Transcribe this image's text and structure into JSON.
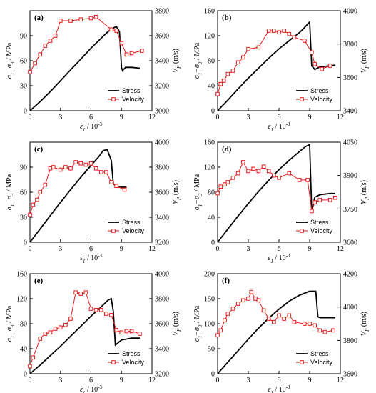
{
  "chart_data": [
    {
      "type": "line",
      "panel": "(a)",
      "xlabel": "ε1 / 10-3",
      "ylabel_left": "σ1−σ3 / MPa",
      "ylabel_right": "VP (m/s)",
      "xlim": [
        0,
        12
      ],
      "xticks": [
        0,
        3,
        6,
        9,
        12
      ],
      "ylim_left": [
        0,
        120
      ],
      "yticks_left": [
        0,
        30,
        60,
        90
      ],
      "ylim_right": [
        3000,
        3800
      ],
      "yticks_right": [
        3000,
        3200,
        3400,
        3600,
        3800
      ],
      "legend": {
        "position": "bottom-right",
        "entries": [
          "Stress",
          "Velocity"
        ]
      },
      "series": [
        {
          "name": "Stress",
          "axis": "left",
          "x": [
            0,
            1,
            2,
            3,
            4,
            5,
            6,
            7,
            7.5,
            8,
            8.5,
            8.8,
            9.0,
            9.1,
            9.4,
            10,
            10.8
          ],
          "y": [
            0,
            11,
            23,
            36,
            49,
            62,
            75,
            87,
            93,
            98,
            101,
            95,
            52,
            48,
            52,
            52,
            51
          ]
        },
        {
          "name": "Velocity",
          "axis": "right",
          "x": [
            0,
            0.5,
            1,
            1.5,
            2,
            2.5,
            3,
            4,
            5,
            6,
            6.5,
            8,
            8.5,
            9,
            9.5,
            10,
            11
          ],
          "y": [
            3310,
            3380,
            3450,
            3520,
            3560,
            3600,
            3720,
            3720,
            3730,
            3740,
            3750,
            3650,
            3640,
            3540,
            3450,
            3460,
            3480
          ]
        }
      ]
    },
    {
      "type": "line",
      "panel": "(b)",
      "xlabel": "ε1 / 10-3",
      "ylabel_left": "σ1−σ3 / MPa",
      "ylabel_right": "VP (m/s)",
      "xlim": [
        0,
        12
      ],
      "xticks": [
        0,
        3,
        6,
        9,
        12
      ],
      "ylim_left": [
        0,
        160
      ],
      "yticks_left": [
        0,
        40,
        80,
        120,
        160
      ],
      "ylim_right": [
        3400,
        4000
      ],
      "yticks_right": [
        3400,
        3600,
        3800,
        4000
      ],
      "legend": {
        "position": "bottom-right",
        "entries": [
          "Stress",
          "Velocity"
        ]
      },
      "series": [
        {
          "name": "Stress",
          "axis": "left",
          "x": [
            0,
            1,
            2,
            3,
            4,
            5,
            6,
            7,
            8,
            8.5,
            9,
            9.2,
            9.5,
            10,
            11,
            11.5
          ],
          "y": [
            0,
            17,
            35,
            52,
            68,
            84,
            99,
            112,
            125,
            133,
            142,
            72,
            66,
            70,
            72,
            73
          ]
        },
        {
          "name": "Velocity",
          "axis": "right",
          "x": [
            0,
            0.3,
            0.6,
            1,
            1.5,
            2,
            2.5,
            3,
            4,
            5,
            5.5,
            6,
            6.5,
            7,
            7.5,
            8.5,
            9.2,
            9.5,
            10.2,
            11
          ],
          "y": [
            3500,
            3560,
            3580,
            3620,
            3640,
            3690,
            3720,
            3770,
            3780,
            3880,
            3880,
            3870,
            3880,
            3860,
            3840,
            3820,
            3750,
            3680,
            3650,
            3670
          ]
        }
      ]
    },
    {
      "type": "line",
      "panel": "(c)",
      "xlabel": "ε1 / 10-3",
      "ylabel_left": "σ1−σ3 / MPa",
      "ylabel_right": "VP (m/s)",
      "xlim": [
        0,
        12
      ],
      "xticks": [
        0,
        3,
        6,
        9,
        12
      ],
      "ylim_left": [
        0,
        120
      ],
      "yticks_left": [
        0,
        30,
        60,
        90
      ],
      "ylim_right": [
        3200,
        4000
      ],
      "yticks_right": [
        3200,
        3400,
        3600,
        3800,
        4000
      ],
      "legend": {
        "position": "bottom-right",
        "entries": [
          "Stress",
          "Velocity"
        ]
      },
      "series": [
        {
          "name": "Stress",
          "axis": "left",
          "x": [
            0,
            1,
            2,
            3,
            4,
            5,
            6,
            6.8,
            7.2,
            7.6,
            8.0,
            8.2,
            8.6,
            9.0,
            9.5
          ],
          "y": [
            0,
            16,
            32,
            48,
            63,
            78,
            92,
            103,
            110,
            111,
            98,
            70,
            66,
            66,
            66
          ]
        },
        {
          "name": "Velocity",
          "axis": "right",
          "x": [
            0,
            0.3,
            0.7,
            1,
            1.5,
            2,
            2.3,
            3,
            3.5,
            4,
            4.5,
            5,
            5.5,
            6,
            6.5,
            7,
            7.5,
            8,
            8.5,
            9.3
          ],
          "y": [
            3420,
            3500,
            3540,
            3600,
            3660,
            3790,
            3800,
            3780,
            3800,
            3790,
            3840,
            3830,
            3820,
            3830,
            3790,
            3760,
            3760,
            3680,
            3650,
            3620
          ]
        }
      ]
    },
    {
      "type": "line",
      "panel": "(d)",
      "xlabel": "ε1 / 10-3",
      "ylabel_left": "σ1−σ3 / MPa",
      "ylabel_right": "VP (m/s)",
      "xlim": [
        0,
        12
      ],
      "xticks": [
        0,
        3,
        6,
        9,
        12
      ],
      "ylim_left": [
        0,
        160
      ],
      "yticks_left": [
        0,
        40,
        80,
        120,
        160
      ],
      "ylim_right": [
        3600,
        4050
      ],
      "yticks_right": [
        3600,
        3750,
        3900,
        4050
      ],
      "legend": {
        "position": "bottom-right",
        "entries": [
          "Stress",
          "Velocity"
        ]
      },
      "series": [
        {
          "name": "Stress",
          "axis": "left",
          "x": [
            0,
            1,
            2,
            3,
            4,
            5,
            6,
            7,
            8,
            8.6,
            9.0,
            9.2,
            9.5,
            10,
            11,
            11.5
          ],
          "y": [
            0,
            21,
            42,
            62,
            81,
            99,
            116,
            131,
            145,
            153,
            156,
            50,
            72,
            76,
            78,
            78
          ]
        },
        {
          "name": "Velocity",
          "axis": "right",
          "x": [
            0,
            0.3,
            0.7,
            1,
            1.5,
            2,
            2.5,
            3,
            3.5,
            4,
            4.5,
            5,
            5.5,
            6,
            7,
            8,
            8.8,
            9.2,
            9.5,
            10,
            11,
            11.5
          ],
          "y": [
            3820,
            3850,
            3860,
            3870,
            3890,
            3910,
            3960,
            3920,
            3930,
            3920,
            3940,
            3920,
            3900,
            3890,
            3910,
            3880,
            3880,
            3740,
            3780,
            3790,
            3790,
            3800
          ]
        }
      ]
    },
    {
      "type": "line",
      "panel": "(e)",
      "xlabel": "ε1 / 10-3",
      "ylabel_left": "σ1−σ3 / MPa",
      "ylabel_right": "VP (m/s)",
      "xlim": [
        0,
        12
      ],
      "xticks": [
        0,
        3,
        6,
        9,
        12
      ],
      "ylim_left": [
        0,
        160
      ],
      "yticks_left": [
        0,
        40,
        80,
        120,
        160
      ],
      "ylim_right": [
        3200,
        4000
      ],
      "yticks_right": [
        3200,
        3400,
        3600,
        3800,
        4000
      ],
      "legend": {
        "position": "bottom-right",
        "entries": [
          "Stress",
          "Velocity"
        ]
      },
      "series": [
        {
          "name": "Stress",
          "axis": "left",
          "x": [
            0,
            1,
            2,
            3,
            4,
            5,
            6,
            7,
            7.7,
            8.0,
            8.2,
            8.4,
            9,
            10,
            10.8
          ],
          "y": [
            0,
            14,
            29,
            44,
            60,
            76,
            92,
            107,
            118,
            120,
            100,
            46,
            54,
            57,
            57
          ]
        },
        {
          "name": "Velocity",
          "axis": "right",
          "x": [
            0,
            0.3,
            1,
            1.5,
            2,
            2.5,
            3,
            3.5,
            4,
            4.5,
            5,
            5.5,
            6,
            6.5,
            7,
            7.5,
            8,
            8.5,
            9,
            9.5,
            10,
            10.8
          ],
          "y": [
            3260,
            3330,
            3480,
            3520,
            3530,
            3560,
            3570,
            3590,
            3640,
            3850,
            3840,
            3850,
            3720,
            3710,
            3710,
            3680,
            3670,
            3550,
            3530,
            3540,
            3540,
            3520
          ]
        }
      ]
    },
    {
      "type": "line",
      "panel": "(f)",
      "xlabel": "ε1 / 10-3",
      "ylabel_left": "σ1−σ3 / MPa",
      "ylabel_right": "VP (m/s)",
      "xlim": [
        0,
        12
      ],
      "xticks": [
        0,
        3,
        6,
        9,
        12
      ],
      "ylim_left": [
        0,
        200
      ],
      "yticks_left": [
        0,
        50,
        100,
        150,
        200
      ],
      "ylim_right": [
        3600,
        4200
      ],
      "yticks_right": [
        3600,
        3800,
        4000,
        4200
      ],
      "legend": {
        "position": "bottom-right",
        "entries": [
          "Stress",
          "Velocity"
        ]
      },
      "series": [
        {
          "name": "Stress",
          "axis": "left",
          "x": [
            0,
            1,
            2,
            3,
            4,
            5,
            6,
            7,
            8,
            9,
            9.6,
            9.8,
            10,
            11,
            11.5
          ],
          "y": [
            0,
            23,
            46,
            69,
            91,
            111,
            129,
            145,
            157,
            165,
            165,
            114,
            112,
            112,
            112
          ]
        },
        {
          "name": "Velocity",
          "axis": "right",
          "x": [
            0,
            0.3,
            0.7,
            1,
            1.5,
            2,
            2.5,
            3,
            3.3,
            3.7,
            4,
            4.5,
            5,
            5.5,
            6,
            6.5,
            7,
            7.5,
            8.5,
            9,
            9.5,
            10,
            10.5,
            11.3
          ],
          "y": [
            3830,
            3860,
            3920,
            3960,
            3990,
            4020,
            4040,
            4050,
            4090,
            4050,
            4040,
            3980,
            3930,
            3910,
            3950,
            3930,
            3950,
            3910,
            3900,
            3900,
            3890,
            3860,
            3850,
            3860
          ]
        }
      ]
    }
  ]
}
